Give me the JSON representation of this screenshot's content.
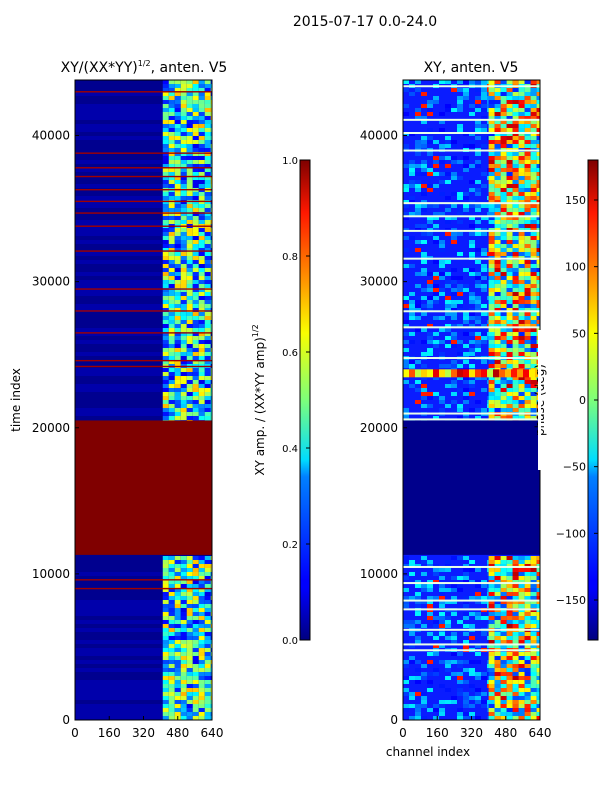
{
  "chart_data": {
    "type": "heatmap",
    "suptitle": "2015-07-17 0.0-24.0",
    "panels": [
      {
        "title_main": "XY/(XX*YY)",
        "title_sup": "1/2",
        "title_tail": ", anten. V5",
        "xlabel": "",
        "ylabel": "time index",
        "xlim": [
          0,
          640
        ],
        "ylim": [
          0,
          43800
        ],
        "xticks": [
          0,
          160,
          320,
          480,
          640
        ],
        "yticks": [
          0,
          10000,
          20000,
          30000,
          40000
        ],
        "colormap": "jet",
        "saturated_band_range": [
          11300,
          20500
        ],
        "structure_channel_range": [
          410,
          640
        ],
        "flagged_rows": [
          9000,
          9600,
          24200,
          24600,
          26500,
          28000,
          29500,
          32100,
          33800,
          34700,
          35500,
          36300,
          37200,
          37800,
          38800,
          43000
        ],
        "colorbar": {
          "label_main": "XY amp. / (XX*YY amp)",
          "label_sup": "1/2",
          "range": [
            0,
            1
          ],
          "ticks": [
            "0.0",
            "0.2",
            "0.4",
            "0.6",
            "0.8",
            "1.0"
          ],
          "tick_values": [
            0,
            0.2,
            0.4,
            0.6,
            0.8,
            1.0
          ]
        }
      },
      {
        "title_main": "XY, anten. V5",
        "xlabel": "channel index",
        "ylabel": "",
        "xlim": [
          0,
          640
        ],
        "ylim": [
          0,
          43800
        ],
        "xticks": [
          0,
          160,
          320,
          480,
          640
        ],
        "yticks": [
          0,
          10000,
          20000,
          30000,
          40000
        ],
        "colormap": "jet",
        "low_band_range": [
          11300,
          20500
        ],
        "structure_channel_range": [
          400,
          640
        ],
        "flagged_rows": [
          4800,
          5200,
          6200,
          7600,
          8200,
          9400,
          10500,
          20600,
          21000,
          24800,
          26900,
          28000,
          31600,
          33500,
          34500,
          35400,
          39000,
          40200,
          41100,
          43400
        ],
        "colorbar": {
          "label_main": "phase (deg)",
          "range": [
            -180,
            180
          ],
          "ticks": [
            "−150",
            "−100",
            "−50",
            "0",
            "50",
            "100",
            "150"
          ],
          "tick_values": [
            -150,
            -100,
            -50,
            0,
            50,
            100,
            150
          ]
        }
      }
    ]
  }
}
